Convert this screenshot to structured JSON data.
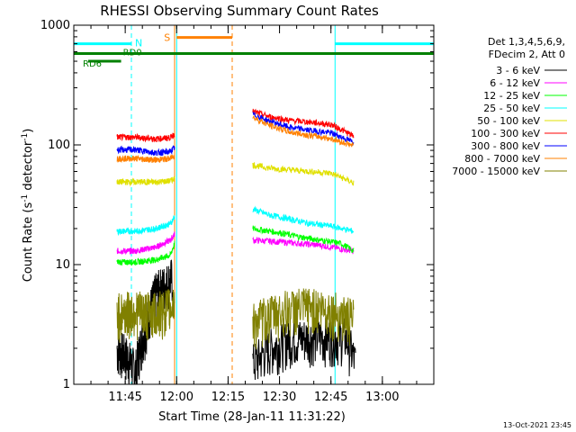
{
  "chart_data": {
    "type": "line",
    "title": "RHESSI Observing Summary Count Rates",
    "xlabel": "Start Time (28-Jan-11 11:31:22)",
    "ylabel_main": "Count Rate (s",
    "ylabel_sup": "-1",
    "ylabel_end": " detector",
    "ylabel_close": ")",
    "yscale": "log",
    "ylim": [
      1,
      1000
    ],
    "xlim": [
      11.5,
      13.25
    ],
    "yticks": [
      {
        "v": 1,
        "label": "1"
      },
      {
        "v": 10,
        "label": "10"
      },
      {
        "v": 100,
        "label": "100"
      },
      {
        "v": 1000,
        "label": "1000"
      }
    ],
    "xticks": [
      {
        "v": 11.75,
        "label": "11:45"
      },
      {
        "v": 12.0,
        "label": "12:00"
      },
      {
        "v": 12.25,
        "label": "12:15"
      },
      {
        "v": 12.5,
        "label": "12:30"
      },
      {
        "v": 12.75,
        "label": "12:45"
      },
      {
        "v": 13.0,
        "label": "13:00"
      }
    ],
    "legend_header": [
      "Det 1,3,4,5,6,9,",
      "FDecim 2, Att 0"
    ],
    "series": [
      {
        "name": "3 - 6 keV",
        "color": "#000000",
        "seg1": [
          [
            11.71,
            2
          ],
          [
            11.75,
            1.8
          ],
          [
            11.8,
            1.3
          ],
          [
            11.85,
            3
          ],
          [
            11.9,
            6
          ],
          [
            11.95,
            7
          ],
          [
            11.98,
            8
          ]
        ],
        "seg2": [
          [
            12.37,
            1.5
          ],
          [
            12.45,
            2
          ],
          [
            12.55,
            2.4
          ],
          [
            12.65,
            2.5
          ],
          [
            12.75,
            2.5
          ],
          [
            12.82,
            2.5
          ],
          [
            12.87,
            1.5
          ]
        ]
      },
      {
        "name": "6 - 12 keV",
        "color": "#ff00ff",
        "seg1": [
          [
            11.71,
            13
          ],
          [
            11.8,
            13
          ],
          [
            11.9,
            14
          ],
          [
            11.97,
            16
          ],
          [
            11.99,
            18
          ]
        ],
        "seg2": [
          [
            12.37,
            16
          ],
          [
            12.5,
            15.5
          ],
          [
            12.6,
            15
          ],
          [
            12.7,
            14.5
          ],
          [
            12.8,
            13.5
          ],
          [
            12.86,
            13
          ]
        ]
      },
      {
        "name": "12 - 25 keV",
        "color": "#00ff00",
        "seg1": [
          [
            11.71,
            10.5
          ],
          [
            11.8,
            10.5
          ],
          [
            11.9,
            11
          ],
          [
            11.97,
            12
          ],
          [
            11.99,
            15
          ]
        ],
        "seg2": [
          [
            12.37,
            20
          ],
          [
            12.5,
            18.5
          ],
          [
            12.6,
            17
          ],
          [
            12.7,
            16
          ],
          [
            12.8,
            15
          ],
          [
            12.86,
            13
          ]
        ]
      },
      {
        "name": "25 - 50 keV",
        "color": "#00ffff",
        "seg1": [
          [
            11.71,
            19
          ],
          [
            11.8,
            19
          ],
          [
            11.9,
            20
          ],
          [
            11.97,
            22
          ],
          [
            11.99,
            25
          ]
        ],
        "seg2": [
          [
            12.37,
            29
          ],
          [
            12.45,
            26
          ],
          [
            12.55,
            24
          ],
          [
            12.65,
            22
          ],
          [
            12.75,
            21
          ],
          [
            12.86,
            19
          ]
        ]
      },
      {
        "name": "50 - 100 keV",
        "color": "#e0e000",
        "seg1": [
          [
            11.71,
            49
          ],
          [
            11.8,
            49
          ],
          [
            11.9,
            49
          ],
          [
            11.97,
            50
          ],
          [
            11.99,
            53
          ]
        ],
        "seg2": [
          [
            12.37,
            68
          ],
          [
            12.45,
            64
          ],
          [
            12.55,
            62
          ],
          [
            12.65,
            60
          ],
          [
            12.75,
            58
          ],
          [
            12.86,
            48
          ]
        ]
      },
      {
        "name": "100 - 300 keV",
        "color": "#ff0000",
        "seg1": [
          [
            11.71,
            116
          ],
          [
            11.8,
            116
          ],
          [
            11.9,
            112
          ],
          [
            11.97,
            115
          ],
          [
            11.99,
            125
          ]
        ],
        "seg2": [
          [
            12.37,
            190
          ],
          [
            12.45,
            172
          ],
          [
            12.55,
            160
          ],
          [
            12.65,
            155
          ],
          [
            12.75,
            148
          ],
          [
            12.86,
            118
          ]
        ]
      },
      {
        "name": "300 - 800 keV",
        "color": "#0000ff",
        "seg1": [
          [
            11.71,
            91
          ],
          [
            11.8,
            91
          ],
          [
            11.9,
            86
          ],
          [
            11.97,
            88
          ],
          [
            11.99,
            95
          ]
        ],
        "seg2": [
          [
            12.37,
            180
          ],
          [
            12.45,
            158
          ],
          [
            12.55,
            140
          ],
          [
            12.65,
            132
          ],
          [
            12.75,
            126
          ],
          [
            12.86,
            105
          ]
        ]
      },
      {
        "name": "800 - 7000 keV",
        "color": "#ff8000",
        "seg1": [
          [
            11.71,
            77
          ],
          [
            11.8,
            77
          ],
          [
            11.9,
            75
          ],
          [
            11.97,
            77
          ],
          [
            11.99,
            82
          ]
        ],
        "seg2": [
          [
            12.37,
            170
          ],
          [
            12.45,
            146
          ],
          [
            12.55,
            128
          ],
          [
            12.65,
            120
          ],
          [
            12.75,
            113
          ],
          [
            12.86,
            98
          ]
        ]
      },
      {
        "name": "7000 - 15000 keV",
        "color": "#808000",
        "seg1": [
          [
            11.71,
            4
          ],
          [
            11.8,
            4.2
          ],
          [
            11.9,
            4
          ],
          [
            11.97,
            4.5
          ],
          [
            11.99,
            5
          ]
        ],
        "seg2": [
          [
            12.37,
            3.3
          ],
          [
            12.45,
            3.8
          ],
          [
            12.55,
            4.3
          ],
          [
            12.65,
            4.5
          ],
          [
            12.75,
            4.2
          ],
          [
            12.86,
            3.5
          ]
        ]
      }
    ],
    "annotations": {
      "n_label": "N",
      "s_label": "S",
      "rdo_label": "RD0",
      "rd6_label": "RD6",
      "night_bars": [
        [
          11.5,
          11.78
        ],
        [
          12.77,
          13.25
        ]
      ],
      "night_y": 700,
      "saa_bar": [
        12.0,
        12.27
      ],
      "saa_y": 790,
      "rdo_y": 580,
      "rd6_bar": [
        11.57,
        11.73
      ],
      "rd6_y": 500,
      "cyan_solid": [
        11.5,
        12.0,
        12.77
      ],
      "cyan_dashed": [
        11.78,
        13.25
      ],
      "orange_solid": [
        11.99
      ],
      "orange_dashed": [
        12.27
      ]
    },
    "footer_date": "13-Oct-2021 23:45"
  },
  "colors": {
    "night": "#00ffff",
    "saa": "#ff8000",
    "decim": "#008000"
  }
}
